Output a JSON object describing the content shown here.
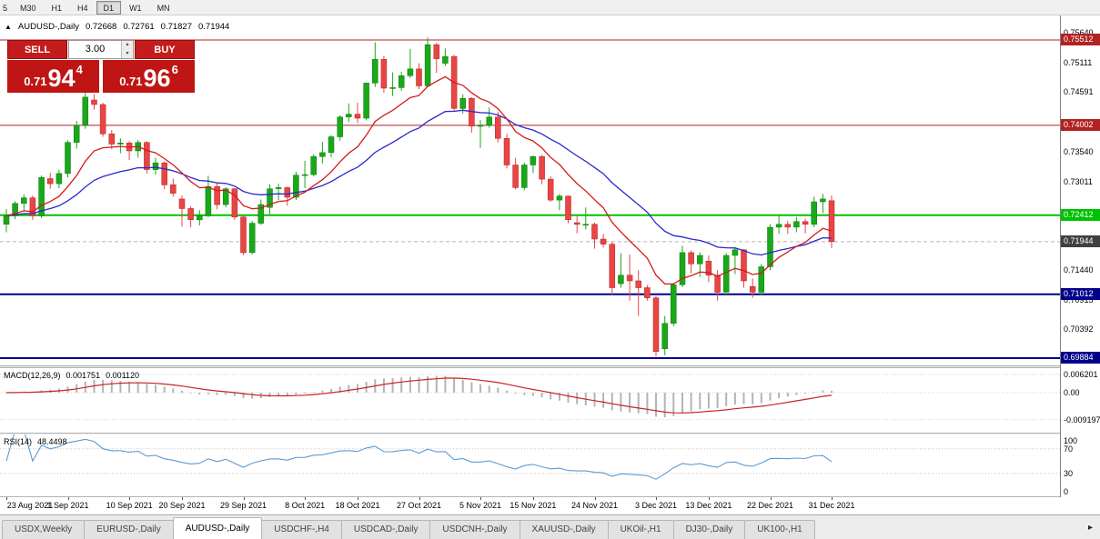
{
  "period_bar": {
    "items": [
      {
        "label": "5",
        "active": false
      },
      {
        "label": "M30",
        "active": false
      },
      {
        "label": "H1",
        "active": false
      },
      {
        "label": "H4",
        "active": false
      },
      {
        "label": "D1",
        "active": true
      },
      {
        "label": "W1",
        "active": false
      },
      {
        "label": "MN",
        "active": false
      }
    ]
  },
  "chart_info": {
    "collapse_icon": "▲",
    "symbol_label": "AUDUSD-,Daily",
    "open": "0.72668",
    "high": "0.72761",
    "low": "0.71827",
    "close": "0.71944"
  },
  "trade_panel": {
    "sell_label": "SELL",
    "buy_label": "BUY",
    "volume": "3.00",
    "vol_up_icon": "▴",
    "vol_down_icon": "▾",
    "bid_small": "0.71",
    "bid_big": "94",
    "bid_sup": "4",
    "ask_small": "0.71",
    "ask_big": "96",
    "ask_sup": "6"
  },
  "macd": {
    "label": "MACD(12,26,9)",
    "value1": "0.001751",
    "value2": "0.001120",
    "axis": [
      "0.006201",
      "0.00",
      "-0.009197"
    ],
    "grid": [
      0.006201,
      0,
      -0.009197
    ],
    "hist_color": "#b4b4b4",
    "signal_color": "#cc2222"
  },
  "rsi": {
    "label": "RSI(14)",
    "value": "48.4498",
    "axis": [
      "100",
      "70",
      "30",
      "0"
    ],
    "grid": [
      70,
      30
    ],
    "color": "#5b9bd5"
  },
  "tabs": [
    {
      "label": "USDX,Weekly",
      "active": false
    },
    {
      "label": "EURUSD-,Daily",
      "active": false
    },
    {
      "label": "AUDUSD-,Daily",
      "active": true
    },
    {
      "label": "USDCHF-,H4",
      "active": false
    },
    {
      "label": "USDCAD-,Daily",
      "active": false
    },
    {
      "label": "USDCNH-,Daily",
      "active": false
    },
    {
      "label": "XAUUSD-,Daily",
      "active": false
    },
    {
      "label": "UKOil-,H1",
      "active": false
    },
    {
      "label": "DJ30-,Daily",
      "active": false
    },
    {
      "label": "UK100-,H1",
      "active": false
    }
  ],
  "tabs_scroll_icon": "▸",
  "chart_data": {
    "type": "candlestick",
    "symbol": "AUDUSD-",
    "timeframe": "Daily",
    "colors": {
      "up": "#19a819",
      "up_border": "#0e7a0e",
      "down": "#e84545",
      "down_border": "#b22222"
    },
    "price_scale": {
      "top": 0.75946,
      "bottom": 0.69755
    },
    "y_axis_labels": [
      "0.75640",
      "0.75111",
      "0.74591",
      "0.73540",
      "0.73011",
      "0.71440",
      "0.70915",
      "0.70392"
    ],
    "levels": [
      {
        "price": 0.75512,
        "label": "0.75512",
        "color": "#b22222",
        "width": 1
      },
      {
        "price": 0.74002,
        "label": "0.74002",
        "color": "#b22222",
        "width": 1
      },
      {
        "price": 0.72412,
        "label": "0.72412",
        "color": "#00c200",
        "width": 2
      },
      {
        "price": 0.71012,
        "label": "0.71012",
        "color": "#00008b",
        "width": 2
      },
      {
        "price": 0.69884,
        "label": "0.69884",
        "color": "#00008b",
        "width": 2
      }
    ],
    "current_price": {
      "value": 0.71944,
      "label": "0.71944",
      "color": "#404040"
    },
    "indicators": {
      "ma_fast": {
        "period": 10,
        "color": "#d41a1a"
      },
      "ma_slow": {
        "period": 24,
        "color": "#2929cc"
      }
    },
    "x_labels": [
      {
        "text": "23 Aug 2021",
        "bar": 0
      },
      {
        "text": "1 Sep 2021",
        "bar": 7
      },
      {
        "text": "10 Sep 2021",
        "bar": 14
      },
      {
        "text": "20 Sep 2021",
        "bar": 20
      },
      {
        "text": "29 Sep 2021",
        "bar": 27
      },
      {
        "text": "8 Oct 2021",
        "bar": 34
      },
      {
        "text": "18 Oct 2021",
        "bar": 40
      },
      {
        "text": "27 Oct 2021",
        "bar": 47
      },
      {
        "text": "5 Nov 2021",
        "bar": 54
      },
      {
        "text": "15 Nov 2021",
        "bar": 60
      },
      {
        "text": "24 Nov 2021",
        "bar": 67
      },
      {
        "text": "3 Dec 2021",
        "bar": 74
      },
      {
        "text": "13 Dec 2021",
        "bar": 80
      },
      {
        "text": "22 Dec 2021",
        "bar": 87
      },
      {
        "text": "31 Dec 2021",
        "bar": 94
      }
    ],
    "ohlc": [
      [
        0.7225,
        0.7252,
        0.7211,
        0.724
      ],
      [
        0.724,
        0.7266,
        0.7234,
        0.7262
      ],
      [
        0.7262,
        0.7278,
        0.7248,
        0.7272
      ],
      [
        0.7272,
        0.7276,
        0.7233,
        0.724
      ],
      [
        0.724,
        0.73115,
        0.7236,
        0.7308
      ],
      [
        0.7306,
        0.7316,
        0.7288,
        0.7297
      ],
      [
        0.7297,
        0.73215,
        0.7289,
        0.7315
      ],
      [
        0.7315,
        0.7374,
        0.7308,
        0.737
      ],
      [
        0.737,
        0.7408,
        0.7359,
        0.74
      ],
      [
        0.74,
        0.74785,
        0.7394,
        0.745
      ],
      [
        0.7445,
        0.7455,
        0.7428,
        0.7437
      ],
      [
        0.7437,
        0.744,
        0.738,
        0.7385
      ],
      [
        0.7385,
        0.7392,
        0.7358,
        0.7367
      ],
      [
        0.7367,
        0.7377,
        0.7351,
        0.7369
      ],
      [
        0.7369,
        0.7372,
        0.7339,
        0.7355
      ],
      [
        0.7355,
        0.73745,
        0.7343,
        0.737
      ],
      [
        0.737,
        0.7372,
        0.7315,
        0.7322
      ],
      [
        0.7322,
        0.7343,
        0.7313,
        0.7334
      ],
      [
        0.7334,
        0.7336,
        0.7287,
        0.7295
      ],
      [
        0.7295,
        0.7306,
        0.7274,
        0.728
      ],
      [
        0.727,
        0.7276,
        0.7221,
        0.7253
      ],
      [
        0.7253,
        0.7257,
        0.722,
        0.7233
      ],
      [
        0.7233,
        0.725,
        0.7223,
        0.724
      ],
      [
        0.724,
        0.7311,
        0.7238,
        0.7292
      ],
      [
        0.7292,
        0.7299,
        0.7252,
        0.726
      ],
      [
        0.726,
        0.72905,
        0.7255,
        0.7288
      ],
      [
        0.7288,
        0.7289,
        0.7233,
        0.7238
      ],
      [
        0.7238,
        0.7242,
        0.71705,
        0.7175
      ],
      [
        0.7175,
        0.7231,
        0.7172,
        0.7227
      ],
      [
        0.7227,
        0.7269,
        0.7224,
        0.726
      ],
      [
        0.7255,
        0.7296,
        0.7243,
        0.7288
      ],
      [
        0.7288,
        0.7297,
        0.7268,
        0.729
      ],
      [
        0.729,
        0.72915,
        0.7258,
        0.7273
      ],
      [
        0.7273,
        0.7318,
        0.7268,
        0.7312
      ],
      [
        0.7312,
        0.73375,
        0.7289,
        0.7313
      ],
      [
        0.7313,
        0.7349,
        0.731,
        0.7345
      ],
      [
        0.7345,
        0.7371,
        0.7333,
        0.7352
      ],
      [
        0.7352,
        0.7383,
        0.7344,
        0.738
      ],
      [
        0.738,
        0.7418,
        0.7373,
        0.7415
      ],
      [
        0.7415,
        0.7439,
        0.7406,
        0.742
      ],
      [
        0.742,
        0.744,
        0.7404,
        0.7413
      ],
      [
        0.7413,
        0.7476,
        0.7409,
        0.7475
      ],
      [
        0.7475,
        0.7547,
        0.7468,
        0.7517
      ],
      [
        0.7517,
        0.7523,
        0.7458,
        0.7466
      ],
      [
        0.7466,
        0.7494,
        0.7452,
        0.7467
      ],
      [
        0.7467,
        0.7495,
        0.7461,
        0.7488
      ],
      [
        0.7488,
        0.75355,
        0.7484,
        0.75
      ],
      [
        0.75,
        0.751,
        0.7464,
        0.747
      ],
      [
        0.747,
        0.75555,
        0.7468,
        0.7543
      ],
      [
        0.7543,
        0.7546,
        0.7493,
        0.7518
      ],
      [
        0.751,
        0.7536,
        0.7505,
        0.7522
      ],
      [
        0.7522,
        0.7525,
        0.7426,
        0.743
      ],
      [
        0.743,
        0.7455,
        0.7421,
        0.7448
      ],
      [
        0.7448,
        0.745,
        0.7387,
        0.7399
      ],
      [
        0.7399,
        0.74095,
        0.736,
        0.74
      ],
      [
        0.74,
        0.7432,
        0.7396,
        0.7415
      ],
      [
        0.7415,
        0.7424,
        0.737,
        0.7377
      ],
      [
        0.7377,
        0.7385,
        0.7324,
        0.733
      ],
      [
        0.733,
        0.7343,
        0.7287,
        0.729
      ],
      [
        0.729,
        0.7334,
        0.7285,
        0.733
      ],
      [
        0.733,
        0.7347,
        0.7316,
        0.7345
      ],
      [
        0.7345,
        0.7348,
        0.7296,
        0.7305
      ],
      [
        0.7305,
        0.731,
        0.7265,
        0.7268
      ],
      [
        0.7268,
        0.7279,
        0.725,
        0.7275
      ],
      [
        0.7275,
        0.7276,
        0.7227,
        0.7233
      ],
      [
        0.7228,
        0.7239,
        0.7209,
        0.7225
      ],
      [
        0.7225,
        0.7255,
        0.7216,
        0.7225
      ],
      [
        0.7225,
        0.7228,
        0.7182,
        0.7199
      ],
      [
        0.7199,
        0.7208,
        0.7184,
        0.719
      ],
      [
        0.719,
        0.7194,
        0.71,
        0.7113
      ],
      [
        0.712,
        0.7174,
        0.7113,
        0.7135
      ],
      [
        0.7135,
        0.71715,
        0.709,
        0.7125
      ],
      [
        0.7125,
        0.7144,
        0.7063,
        0.7113
      ],
      [
        0.7113,
        0.7118,
        0.709,
        0.7095
      ],
      [
        0.7095,
        0.7098,
        0.69915,
        0.7
      ],
      [
        0.7005,
        0.7063,
        0.69935,
        0.705
      ],
      [
        0.705,
        0.71215,
        0.7045,
        0.7118
      ],
      [
        0.7118,
        0.7187,
        0.7114,
        0.7175
      ],
      [
        0.7175,
        0.7179,
        0.7138,
        0.7155
      ],
      [
        0.7155,
        0.7176,
        0.7132,
        0.717
      ],
      [
        0.716,
        0.717,
        0.7123,
        0.7135
      ],
      [
        0.7135,
        0.7144,
        0.709,
        0.7105
      ],
      [
        0.7105,
        0.7174,
        0.7099,
        0.717
      ],
      [
        0.717,
        0.7185,
        0.7137,
        0.718
      ],
      [
        0.718,
        0.7181,
        0.7113,
        0.7125
      ],
      [
        0.7115,
        0.7129,
        0.7095,
        0.7105
      ],
      [
        0.7105,
        0.7155,
        0.7099,
        0.715
      ],
      [
        0.715,
        0.7225,
        0.7144,
        0.722
      ],
      [
        0.722,
        0.7243,
        0.7208,
        0.7225
      ],
      [
        0.7225,
        0.7231,
        0.7208,
        0.722
      ],
      [
        0.722,
        0.7238,
        0.7211,
        0.723
      ],
      [
        0.723,
        0.7235,
        0.7209,
        0.7225
      ],
      [
        0.7225,
        0.7274,
        0.722,
        0.7265
      ],
      [
        0.7265,
        0.7279,
        0.7245,
        0.727
      ],
      [
        0.72668,
        0.72761,
        0.71827,
        0.71944
      ]
    ]
  }
}
